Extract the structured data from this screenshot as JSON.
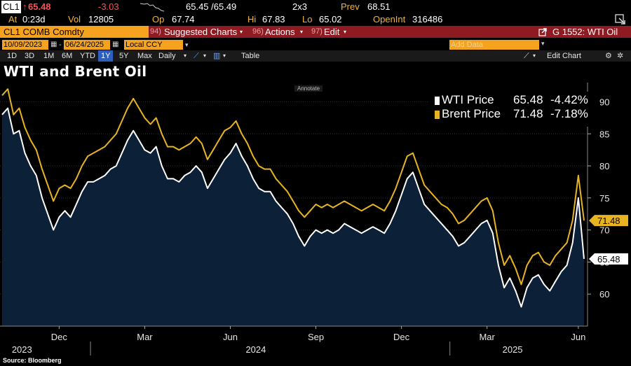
{
  "quote": {
    "ticker": "CL1",
    "arrow": "↑",
    "last": "65.48",
    "change": "-3.03",
    "bid_ask": "65.45 /65.49",
    "size": "2x3",
    "prev_label": "Prev",
    "prev": "68.51",
    "at_label": "At",
    "at": "0:23d",
    "vol_label": "Vol",
    "vol": "12805",
    "op_label": "Op",
    "op": "67.74",
    "hi_label": "Hi",
    "hi": "67.83",
    "lo_label": "Lo",
    "lo": "65.02",
    "oi_label": "OpenInt",
    "oi": "316486"
  },
  "menu": {
    "security": "CL1 COMB Comdty",
    "item1_num": "94)",
    "item1": "Suggested Charts",
    "item2_num": "96)",
    "item2": "Actions",
    "item3_num": "97)",
    "item3": "Edit",
    "chart_id": "G 1552: WTI Oil"
  },
  "toolbar": {
    "start_date": "10/09/2023",
    "end_date": "06/24/2025",
    "currency": "Local CCY",
    "add_data": "Add Data",
    "ranges": [
      "1D",
      "3D",
      "1M",
      "6M",
      "YTD",
      "1Y",
      "5Y",
      "Max"
    ],
    "selected_range": "1Y",
    "frequency": "Daily",
    "table": "Table",
    "edit_chart": "Edit Chart"
  },
  "annotate": "Annotate",
  "source": "Source: Bloomberg",
  "colors": {
    "wti": "#ffffff",
    "brent": "#e8b422",
    "area": "#0c2038",
    "background": "#000000",
    "accent": "#f5a21e",
    "menu_bar": "#8e1a22"
  },
  "chart_data": {
    "type": "line",
    "title": "WTI and Brent Oil",
    "ylim": [
      55,
      93
    ],
    "yticks": [
      60,
      65,
      70,
      75,
      80,
      85,
      90
    ],
    "xtick_labels": [
      "Dec",
      "Mar",
      "Jun",
      "Sep",
      "Dec",
      "Mar",
      "Jun"
    ],
    "xtick_index": [
      10,
      25,
      40,
      55,
      70,
      85,
      101
    ],
    "year_labels": [
      "2023",
      "2024",
      "2025"
    ],
    "year_index": [
      2,
      43,
      88
    ],
    "legend": [
      {
        "name": "WTI Price",
        "last": "65.48",
        "change": "-4.42%"
      },
      {
        "name": "Brent Price",
        "last": "71.48",
        "change": "-7.18%"
      }
    ],
    "last_value_labels": {
      "wti": "65.48",
      "brent": "71.48"
    },
    "series": [
      {
        "name": "WTI Price",
        "values": [
          88.0,
          89.0,
          85.0,
          85.5,
          82.0,
          80.0,
          78.5,
          75.0,
          72.5,
          70.0,
          72.0,
          73.0,
          72.0,
          74.0,
          76.0,
          77.5,
          77.5,
          78.0,
          78.5,
          79.5,
          80.0,
          82.0,
          84.0,
          85.5,
          84.0,
          82.5,
          82.0,
          83.0,
          80.0,
          78.0,
          78.0,
          77.5,
          78.5,
          79.0,
          80.0,
          79.0,
          76.5,
          78.0,
          79.5,
          81.0,
          82.0,
          83.5,
          81.5,
          80.0,
          78.0,
          76.5,
          76.0,
          76.0,
          74.5,
          73.5,
          72.5,
          71.0,
          69.0,
          67.5,
          69.0,
          70.0,
          69.5,
          70.0,
          69.5,
          70.0,
          71.0,
          70.5,
          70.0,
          69.5,
          70.0,
          70.5,
          70.0,
          69.5,
          71.0,
          73.0,
          75.5,
          78.0,
          79.0,
          76.5,
          74.0,
          73.0,
          72.0,
          71.0,
          70.0,
          69.0,
          67.5,
          68.0,
          69.0,
          70.0,
          71.0,
          71.5,
          69.5,
          64.5,
          61.0,
          62.5,
          60.5,
          58.0,
          61.0,
          62.5,
          63.0,
          61.5,
          60.5,
          62.0,
          63.5,
          64.5,
          68.0,
          75.0,
          65.48
        ]
      },
      {
        "name": "Brent Price",
        "values": [
          91.0,
          92.0,
          88.0,
          89.0,
          86.0,
          84.0,
          82.5,
          79.5,
          77.0,
          74.5,
          76.5,
          77.0,
          76.5,
          78.0,
          80.0,
          81.5,
          82.0,
          82.5,
          83.0,
          84.0,
          85.0,
          87.0,
          89.0,
          90.5,
          89.0,
          87.5,
          86.5,
          87.5,
          85.0,
          83.0,
          83.0,
          82.5,
          83.0,
          83.5,
          84.5,
          83.5,
          81.0,
          82.5,
          84.0,
          85.5,
          86.0,
          87.0,
          85.0,
          83.5,
          81.5,
          80.0,
          79.5,
          79.5,
          78.0,
          77.0,
          76.0,
          74.5,
          73.0,
          72.0,
          73.0,
          74.0,
          73.5,
          74.0,
          73.5,
          74.0,
          74.5,
          74.0,
          73.5,
          73.0,
          73.5,
          74.0,
          73.5,
          73.0,
          74.5,
          76.5,
          79.0,
          81.5,
          82.0,
          79.5,
          77.0,
          76.0,
          75.0,
          74.0,
          73.5,
          72.5,
          71.0,
          71.5,
          72.5,
          73.5,
          74.5,
          75.0,
          73.0,
          68.0,
          64.5,
          66.0,
          64.0,
          61.5,
          64.5,
          66.0,
          66.5,
          65.0,
          64.5,
          66.0,
          67.0,
          68.0,
          71.5,
          78.5,
          71.48
        ]
      }
    ]
  }
}
